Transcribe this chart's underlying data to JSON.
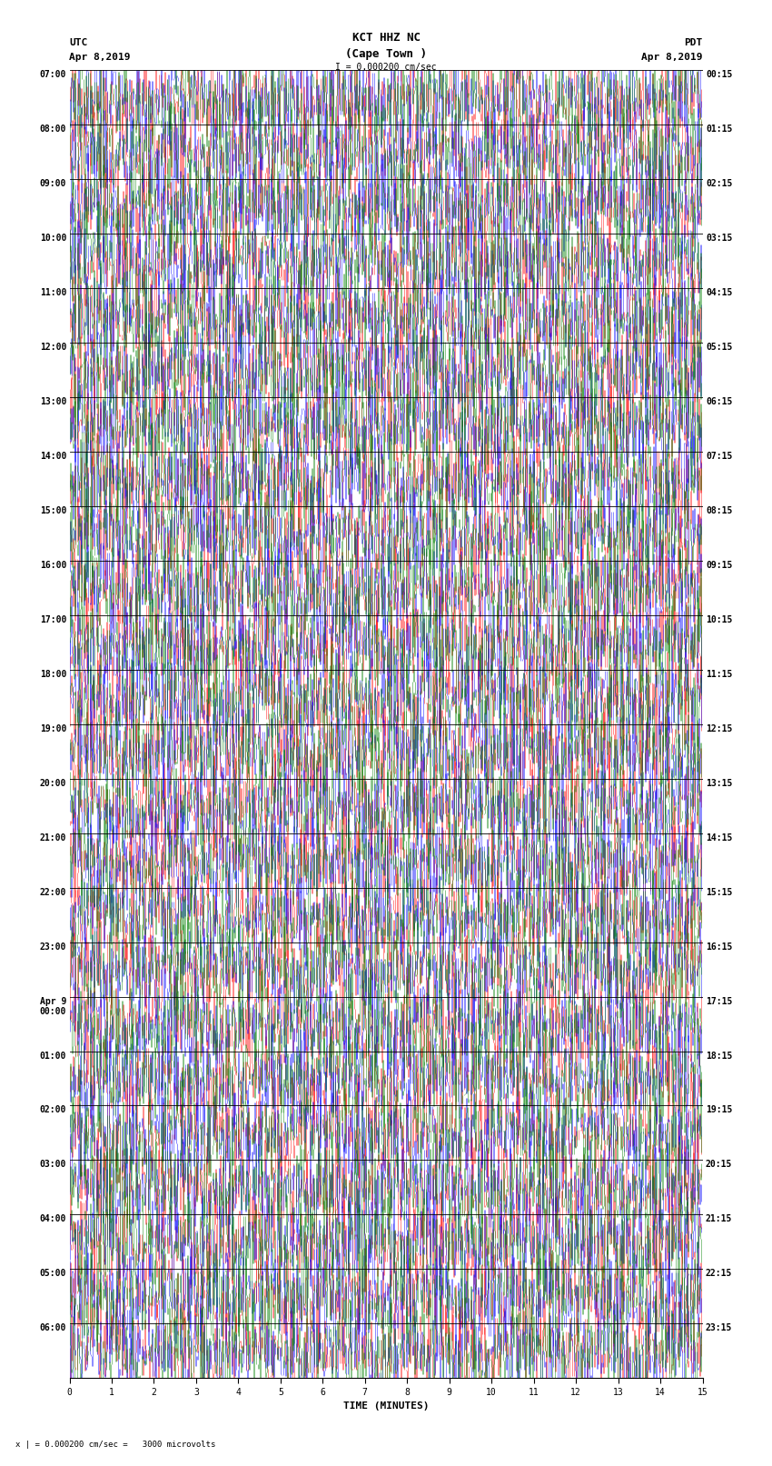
{
  "title_line1": "KCT HHZ NC",
  "title_line2": "(Cape Town )",
  "scale_text": "I = 0.000200 cm/sec",
  "left_label": "UTC",
  "left_date": "Apr 8,2019",
  "right_label": "PDT",
  "right_date": "Apr 8,2019",
  "xlabel": "TIME (MINUTES)",
  "x_ticks": [
    0,
    1,
    2,
    3,
    4,
    5,
    6,
    7,
    8,
    9,
    10,
    11,
    12,
    13,
    14,
    15
  ],
  "footer_text": "x | = 0.000200 cm/sec =   3000 microvolts",
  "bg_color": "#ffffff",
  "num_rows": 24,
  "minutes_per_row": 15,
  "left_time_labels": [
    "07:00",
    "08:00",
    "09:00",
    "10:00",
    "11:00",
    "12:00",
    "13:00",
    "14:00",
    "15:00",
    "16:00",
    "17:00",
    "18:00",
    "19:00",
    "20:00",
    "21:00",
    "22:00",
    "23:00",
    "Apr 9\n00:00",
    "01:00",
    "02:00",
    "03:00",
    "04:00",
    "05:00",
    "06:00"
  ],
  "right_time_labels": [
    "00:15",
    "01:15",
    "02:15",
    "03:15",
    "04:15",
    "05:15",
    "06:15",
    "07:15",
    "08:15",
    "09:15",
    "10:15",
    "11:15",
    "12:15",
    "13:15",
    "14:15",
    "15:15",
    "16:15",
    "17:15",
    "18:15",
    "19:15",
    "20:15",
    "21:15",
    "22:15",
    "23:15"
  ],
  "font_size_title": 9,
  "font_size_labels": 8,
  "font_size_ticks": 7,
  "font_family": "monospace"
}
